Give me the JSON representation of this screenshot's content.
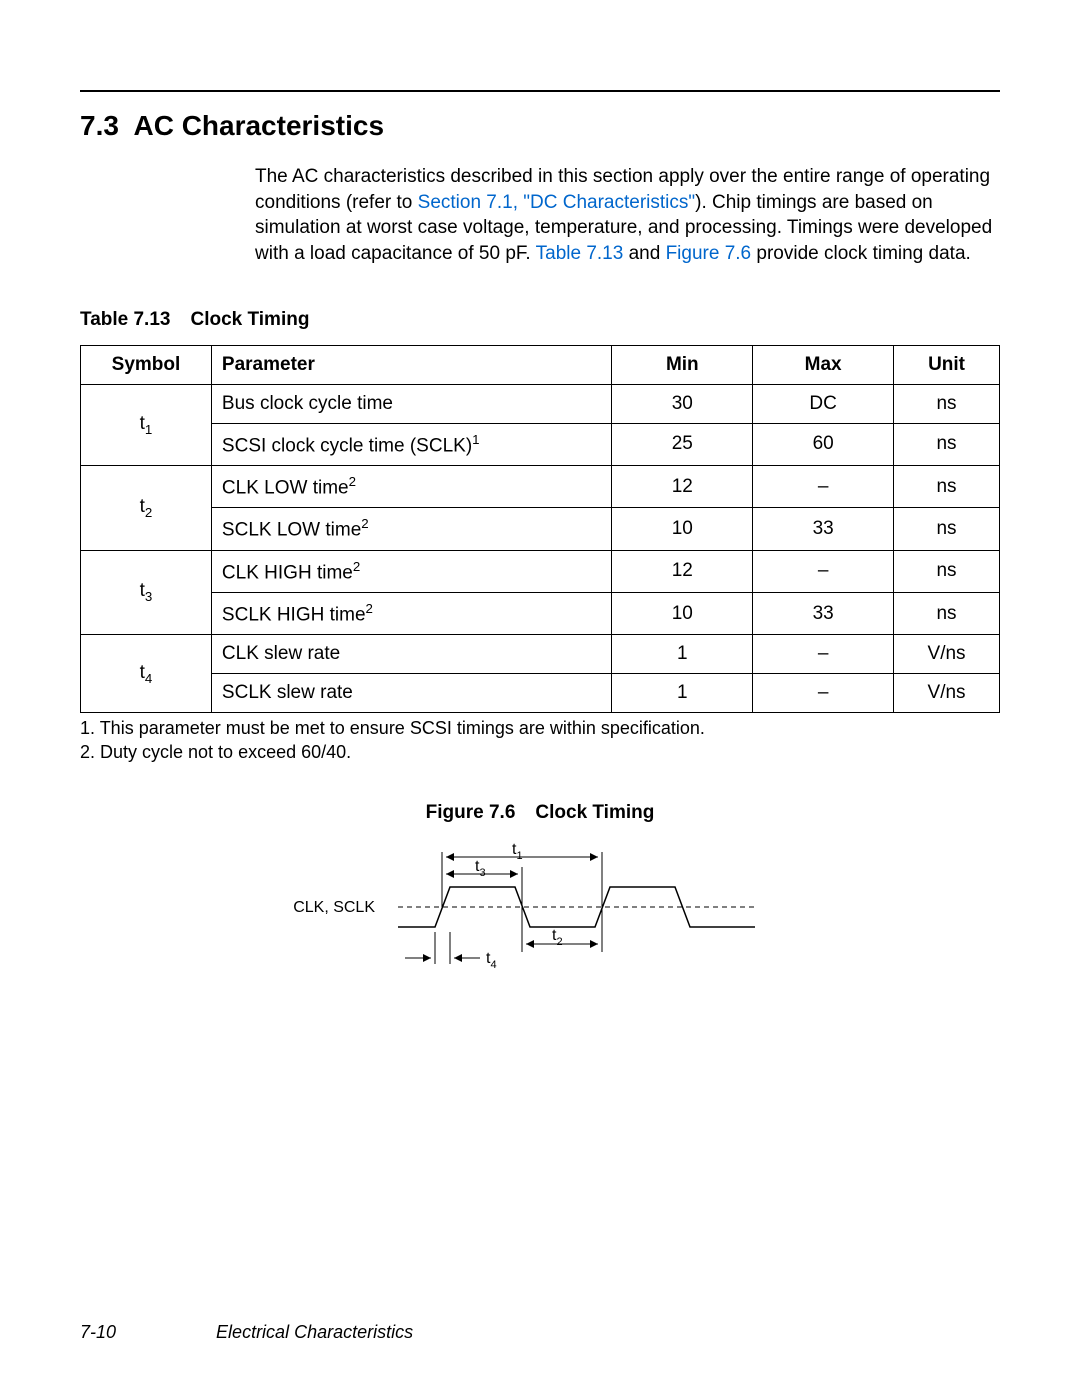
{
  "section": {
    "number": "7.3",
    "title": "AC Characteristics"
  },
  "paragraph": {
    "p1": "The AC characteristics described in this section apply over the entire range of operating conditions (refer to ",
    "link1": "Section 7.1, \"DC Characteristics\"",
    "p2": "). Chip timings are based on simulation at worst case voltage, temperature, and processing. Timings were developed with a load capacitance of 50 pF. ",
    "link2": "Table 7.13",
    "p3": " and ",
    "link3": "Figure 7.6",
    "p4": " provide clock timing data."
  },
  "table": {
    "caption_num": "Table 7.13",
    "caption_text": "Clock Timing",
    "headers": {
      "symbol": "Symbol",
      "parameter": "Parameter",
      "min": "Min",
      "max": "Max",
      "unit": "Unit"
    },
    "rows": [
      {
        "symbol": "t",
        "sub": "1",
        "param_pre": "Bus clock cycle time",
        "param_sup": "",
        "min": "30",
        "max": "DC",
        "unit": "ns"
      },
      {
        "symbol": "",
        "sub": "",
        "param_pre": "SCSI clock cycle time (SCLK)",
        "param_sup": "1",
        "min": "25",
        "max": "60",
        "unit": "ns"
      },
      {
        "symbol": "t",
        "sub": "2",
        "param_pre": "CLK LOW time",
        "param_sup": "2",
        "min": "12",
        "max": "–",
        "unit": "ns"
      },
      {
        "symbol": "",
        "sub": "",
        "param_pre": "SCLK LOW time",
        "param_sup": "2",
        "min": "10",
        "max": "33",
        "unit": "ns"
      },
      {
        "symbol": "t",
        "sub": "3",
        "param_pre": "CLK HIGH time",
        "param_sup": "2",
        "min": "12",
        "max": "–",
        "unit": "ns"
      },
      {
        "symbol": "",
        "sub": "",
        "param_pre": "SCLK HIGH time",
        "param_sup": "2",
        "min": "10",
        "max": "33",
        "unit": "ns"
      },
      {
        "symbol": "t",
        "sub": "4",
        "param_pre": "CLK slew rate",
        "param_sup": "",
        "min": "1",
        "max": "–",
        "unit": "V/ns"
      },
      {
        "symbol": "",
        "sub": "",
        "param_pre": "SCLK slew rate",
        "param_sup": "",
        "min": "1",
        "max": "–",
        "unit": "V/ns"
      }
    ],
    "footnote1": "1.  This parameter must be met to ensure SCSI timings are within specification.",
    "footnote2": "2.  Duty cycle not to exceed 60/40."
  },
  "figure": {
    "caption_num": "Figure 7.6",
    "caption_text": "Clock Timing",
    "signal_label": "CLK, SCLK",
    "t1": "t",
    "t1_sub": "1",
    "t2": "t",
    "t2_sub": "2",
    "t3": "t",
    "t3_sub": "3",
    "t4": "t",
    "t4_sub": "4",
    "colors": {
      "stroke": "#000000",
      "dash_pattern": "5,4"
    }
  },
  "footer": {
    "page_num": "7-10",
    "chapter": "Electrical Characteristics"
  }
}
